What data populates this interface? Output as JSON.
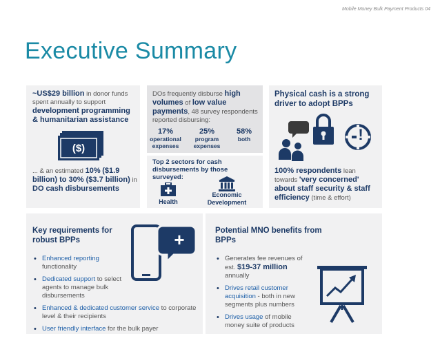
{
  "header": {
    "caption": "Mobile Money Bulk Payment Products 04"
  },
  "title": "Executive Summary",
  "panel1": {
    "amount": "~US$29 billion",
    "t1": " in donor funds spent annually to support ",
    "t2": "development programming & humanitarian assistance",
    "t3": "... & an estimated ",
    "pct": "10%",
    "t4": "($1.9 billion) to 30% ($3.7 billion)",
    "t5": " in ",
    "t6": "DO cash disbursements",
    "icon_symbol": "($)"
  },
  "panel2": {
    "p1": "DOs frequently disburse ",
    "p2": "high volumes",
    "p3": " of ",
    "p4": "low value payments",
    "p5": ", 48 survey respondents reported disbursing:",
    "stats": [
      {
        "value": "17%",
        "label": "operational expenses"
      },
      {
        "value": "25%",
        "label": "program expenses"
      },
      {
        "value": "58%",
        "label": "both"
      }
    ],
    "sectors_title": "Top 2 sectors for cash disbursements by those surveyed:",
    "sector1": "Health",
    "sector2": "Economic Development"
  },
  "panel3": {
    "title": "Physical cash is a strong driver to adopt BPPs",
    "exclaim": "!",
    "r1": "100% respondents",
    "r2": " lean towards ",
    "r3": "'very concerned' about staff security & staff efficiency",
    "r4": " (time & effort)"
  },
  "panel4": {
    "title": "Key requirements for robust BPPs",
    "plus": "+",
    "b1a": "Enhanced reporting",
    "b1b": " functionality",
    "b2a": "Dedicated support",
    "b2b": " to select agents to manage bulk disbursements",
    "b3a": "Enhanced & dedicated customer service",
    "b3b": " to corporate level & their recipients",
    "b4a": "User friendly interface",
    "b4b": " for the bulk payer"
  },
  "panel5": {
    "title": "Potential MNO benefits from BPPs",
    "b1a": "Generates fee revenues of est. ",
    "b1b": "$19-37 million",
    "b1c": " annually",
    "b2a": "Drives retail customer acquisition",
    "b2b": " - both in new segments plus numbers",
    "b3a": "Drives usage",
    "b3b": " of mobile money suite of products"
  },
  "colors": {
    "navy": "#1d3a66",
    "teal": "#1a8aa5",
    "panel": "#f1f1f2"
  }
}
